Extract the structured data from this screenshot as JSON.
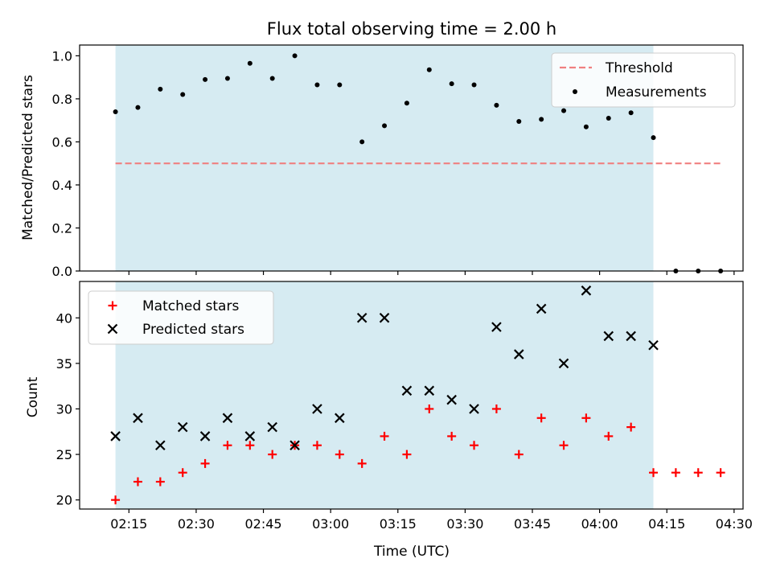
{
  "figure": {
    "title": "Flux total observing time = 2.00 h"
  },
  "colors": {
    "shade": "#add8e6",
    "threshold": "#f08080",
    "measurement": "#000000",
    "matched": "#ff0000",
    "predicted": "#000000"
  },
  "chart_data": [
    {
      "type": "scatter",
      "ylabel": "Matched/Predicted stars",
      "ylim": [
        0,
        1.05
      ],
      "yticks": [
        0.0,
        0.2,
        0.4,
        0.6,
        0.8,
        1.0
      ],
      "ytick_labels": [
        "0.0",
        "0.2",
        "0.4",
        "0.6",
        "0.8",
        "1.0"
      ],
      "xlim": [
        "02:04",
        "04:32"
      ],
      "shaded_span": [
        "02:12",
        "04:12"
      ],
      "legend": {
        "placement": "upper right",
        "entries": [
          {
            "key": "threshold",
            "label": "Threshold"
          },
          {
            "key": "measurements",
            "label": "Measurements"
          }
        ]
      },
      "threshold": {
        "value": 0.5,
        "x_start": "02:12",
        "x_end": "04:27"
      },
      "series": [
        {
          "name": "Measurements",
          "marker": "dot",
          "x": [
            "02:12",
            "02:17",
            "02:22",
            "02:27",
            "02:32",
            "02:37",
            "02:42",
            "02:47",
            "02:52",
            "02:57",
            "03:02",
            "03:07",
            "03:12",
            "03:17",
            "03:22",
            "03:27",
            "03:32",
            "03:37",
            "03:42",
            "03:47",
            "03:52",
            "03:57",
            "04:02",
            "04:07",
            "04:12",
            "04:17",
            "04:22",
            "04:27"
          ],
          "y": [
            0.74,
            0.76,
            0.845,
            0.82,
            0.89,
            0.895,
            0.965,
            0.895,
            1.0,
            0.865,
            0.865,
            0.6,
            0.675,
            0.78,
            0.935,
            0.87,
            0.865,
            0.77,
            0.695,
            0.705,
            0.745,
            0.67,
            0.71,
            0.735,
            0.62,
            0.0,
            0.0,
            0.0
          ]
        }
      ]
    },
    {
      "type": "scatter",
      "ylabel": "Count",
      "xlabel": "Time (UTC)",
      "ylim": [
        19,
        44
      ],
      "yticks": [
        20,
        25,
        30,
        35,
        40
      ],
      "ytick_labels": [
        "20",
        "25",
        "30",
        "35",
        "40"
      ],
      "xlim": [
        "02:04",
        "04:32"
      ],
      "xticks": [
        "02:15",
        "02:30",
        "02:45",
        "03:00",
        "03:15",
        "03:30",
        "03:45",
        "04:00",
        "04:15",
        "04:30"
      ],
      "shaded_span": [
        "02:12",
        "04:12"
      ],
      "legend": {
        "placement": "upper left",
        "entries": [
          {
            "key": "matched",
            "label": "Matched stars"
          },
          {
            "key": "predicted",
            "label": "Predicted stars"
          }
        ]
      },
      "series": [
        {
          "name": "Matched stars",
          "marker": "plus",
          "x": [
            "02:12",
            "02:17",
            "02:22",
            "02:27",
            "02:32",
            "02:37",
            "02:42",
            "02:47",
            "02:52",
            "02:57",
            "03:02",
            "03:07",
            "03:12",
            "03:17",
            "03:22",
            "03:27",
            "03:32",
            "03:37",
            "03:42",
            "03:47",
            "03:52",
            "03:57",
            "04:02",
            "04:07",
            "04:12",
            "04:17",
            "04:22",
            "04:27"
          ],
          "y": [
            20,
            22,
            22,
            23,
            24,
            26,
            26,
            25,
            26,
            26,
            25,
            24,
            27,
            25,
            30,
            27,
            26,
            30,
            25,
            29,
            26,
            29,
            27,
            28,
            23,
            23,
            23,
            23
          ]
        },
        {
          "name": "Predicted stars",
          "marker": "x",
          "x": [
            "02:12",
            "02:17",
            "02:22",
            "02:27",
            "02:32",
            "02:37",
            "02:42",
            "02:47",
            "02:52",
            "02:57",
            "03:02",
            "03:07",
            "03:12",
            "03:17",
            "03:22",
            "03:27",
            "03:32",
            "03:37",
            "03:42",
            "03:47",
            "03:52",
            "03:57",
            "04:02",
            "04:07",
            "04:12"
          ],
          "y": [
            27,
            29,
            26,
            28,
            27,
            29,
            27,
            28,
            26,
            30,
            29,
            40,
            40,
            32,
            32,
            31,
            30,
            39,
            36,
            41,
            35,
            43,
            38,
            38,
            37
          ]
        }
      ]
    }
  ]
}
